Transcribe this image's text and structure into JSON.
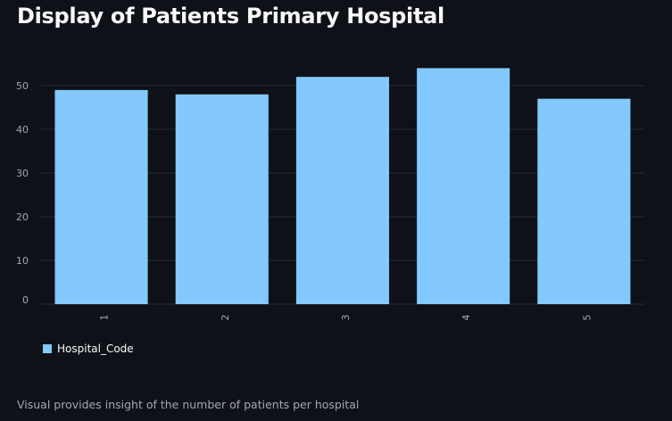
{
  "page": {
    "title": "Display of Patients Primary Hospital",
    "caption": "Visual provides insight of the number of patients per hospital"
  },
  "colors": {
    "background": "#0e1117",
    "bar": "#83c9ff",
    "grid": "#262a35",
    "tick_text": "#a3a8b8"
  },
  "chart_data": {
    "type": "bar",
    "categories": [
      "1",
      "2",
      "3",
      "4",
      "5"
    ],
    "series": [
      {
        "name": "Hospital_Code",
        "values": [
          49,
          48,
          52,
          54,
          47
        ]
      }
    ],
    "xlabel": "",
    "ylabel": "",
    "ylim": [
      0,
      55
    ],
    "yticks": [
      0,
      10,
      20,
      30,
      40,
      50
    ],
    "grid": true,
    "legend_position": "bottom-left"
  }
}
